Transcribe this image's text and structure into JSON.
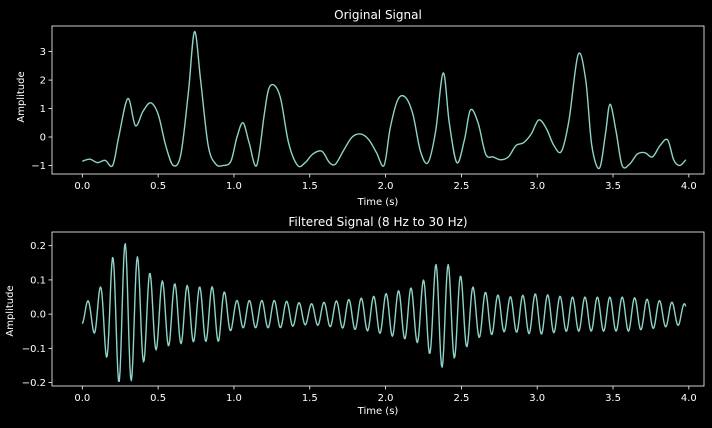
{
  "colors": {
    "background": "#000000",
    "axes": "#ffffff",
    "line": "#8dd3c7"
  },
  "chart_data": [
    {
      "type": "line",
      "title": "Original Signal",
      "xlabel": "Time (s)",
      "ylabel": "Amplitude",
      "xlim": [
        -0.2,
        4.1
      ],
      "ylim": [
        -1.3,
        3.9
      ],
      "xticks": [
        0.0,
        0.5,
        1.0,
        1.5,
        2.0,
        2.5,
        3.0,
        3.5,
        4.0
      ],
      "xtick_labels": [
        "0.0",
        "0.5",
        "1.0",
        "1.5",
        "2.0",
        "2.5",
        "3.0",
        "3.5",
        "4.0"
      ],
      "yticks": [
        -1,
        0,
        1,
        2,
        3
      ],
      "ytick_labels": [
        "−1",
        "0",
        "1",
        "2",
        "3"
      ],
      "series": [
        {
          "x": [
            0.0,
            0.05,
            0.1,
            0.15,
            0.2,
            0.24,
            0.3,
            0.35,
            0.4,
            0.45,
            0.5,
            0.55,
            0.6,
            0.65,
            0.7,
            0.74,
            0.78,
            0.83,
            0.88,
            0.93,
            0.98,
            1.02,
            1.06,
            1.1,
            1.15,
            1.2,
            1.23,
            1.27,
            1.31,
            1.36,
            1.42,
            1.47,
            1.52,
            1.58,
            1.63,
            1.67,
            1.72,
            1.78,
            1.84,
            1.89,
            1.94,
            1.99,
            2.03,
            2.08,
            2.13,
            2.18,
            2.23,
            2.28,
            2.33,
            2.38,
            2.42,
            2.47,
            2.52,
            2.56,
            2.61,
            2.66,
            2.71,
            2.76,
            2.81,
            2.86,
            2.91,
            2.96,
            3.01,
            3.06,
            3.11,
            3.16,
            3.21,
            3.27,
            3.32,
            3.36,
            3.41,
            3.45,
            3.48,
            3.52,
            3.56,
            3.61,
            3.66,
            3.71,
            3.76,
            3.81,
            3.86,
            3.9,
            3.94,
            3.98
          ],
          "y": [
            -0.85,
            -0.78,
            -0.9,
            -0.82,
            -1.0,
            0.0,
            1.35,
            0.4,
            0.9,
            1.2,
            0.8,
            -0.3,
            -1.0,
            -0.6,
            1.6,
            3.7,
            2.0,
            -0.3,
            -0.95,
            -1.0,
            -0.85,
            0.0,
            0.5,
            -0.2,
            -1.0,
            0.8,
            1.7,
            1.8,
            1.3,
            -0.2,
            -1.0,
            -0.9,
            -0.6,
            -0.5,
            -0.9,
            -0.95,
            -0.5,
            0.0,
            0.1,
            -0.1,
            -0.55,
            -1.0,
            0.3,
            1.3,
            1.4,
            0.8,
            -0.5,
            -0.9,
            0.2,
            2.25,
            0.5,
            -0.9,
            -0.1,
            0.95,
            0.5,
            -0.6,
            -0.7,
            -0.8,
            -0.7,
            -0.3,
            -0.2,
            0.1,
            0.6,
            0.3,
            -0.3,
            -0.5,
            0.6,
            2.9,
            2.0,
            -0.3,
            -1.1,
            0.1,
            1.15,
            0.2,
            -1.0,
            -0.95,
            -0.6,
            -0.55,
            -0.7,
            -0.3,
            -0.1,
            -0.8,
            -1.0,
            -0.8
          ]
        }
      ]
    },
    {
      "type": "line",
      "title": "Filtered Signal (8 Hz to 30 Hz)",
      "xlabel": "Time (s)",
      "ylabel": "Amplitude",
      "xlim": [
        -0.2,
        4.1
      ],
      "ylim": [
        -0.21,
        0.24
      ],
      "xticks": [
        0.0,
        0.5,
        1.0,
        1.5,
        2.0,
        2.5,
        3.0,
        3.5,
        4.0
      ],
      "xtick_labels": [
        "0.0",
        "0.5",
        "1.0",
        "1.5",
        "2.0",
        "2.5",
        "3.0",
        "3.5",
        "4.0"
      ],
      "yticks": [
        -0.2,
        -0.1,
        0.0,
        0.1,
        0.2
      ],
      "ytick_labels": [
        "−0.2",
        "−0.1",
        "0.0",
        "0.1",
        "0.2"
      ],
      "series": [
        {
          "envelope": {
            "t": [
              0.0,
              0.06,
              0.12,
              0.18,
              0.24,
              0.3,
              0.36,
              0.42,
              0.5,
              0.6,
              0.75,
              0.9,
              1.0,
              1.1,
              1.3,
              1.5,
              1.7,
              1.9,
              2.0,
              2.1,
              2.2,
              2.3,
              2.35,
              2.4,
              2.5,
              2.6,
              2.7,
              2.8,
              3.0,
              3.2,
              3.4,
              3.6,
              3.8,
              3.98
            ],
            "amp": [
              0.03,
              0.045,
              0.08,
              0.15,
              0.2,
              0.21,
              0.17,
              0.13,
              0.1,
              0.09,
              0.08,
              0.08,
              0.04,
              0.04,
              0.04,
              0.03,
              0.04,
              0.05,
              0.06,
              0.07,
              0.08,
              0.12,
              0.16,
              0.15,
              0.11,
              0.07,
              0.06,
              0.05,
              0.06,
              0.05,
              0.05,
              0.05,
              0.04,
              0.03
            ]
          },
          "frequency_hz": 12.2,
          "samples": 800
        }
      ]
    }
  ]
}
